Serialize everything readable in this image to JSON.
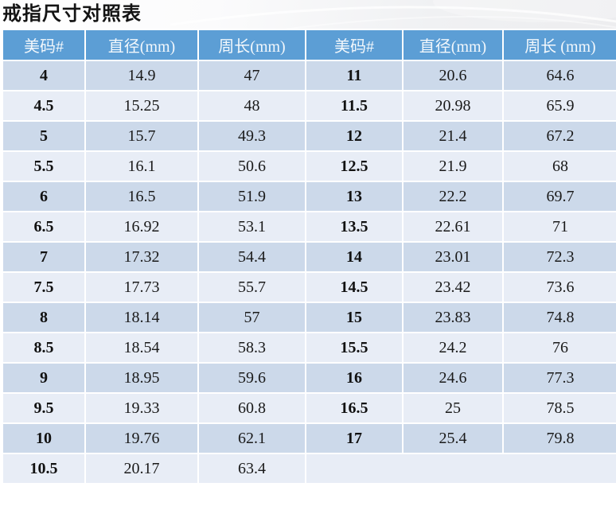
{
  "title": "戒指尺寸对照表",
  "colors": {
    "header_bg": "#5c9ed5",
    "row_dark": "#ccd9ea",
    "row_light": "#e8edf6",
    "header_text": "#f3f8fc",
    "cell_text": "#1a1a1a",
    "grid_border": "#ffffff",
    "title_text": "#141414"
  },
  "chart_data": {
    "type": "table",
    "title": "戒指尺寸对照表",
    "columns": [
      "美码#",
      "直径(mm)",
      "周长(mm)",
      "美码#",
      "直径(mm)",
      "周长 (mm)"
    ],
    "rows": [
      [
        "4",
        "14.9",
        "47",
        "11",
        "20.6",
        "64.6"
      ],
      [
        "4.5",
        "15.25",
        "48",
        "11.5",
        "20.98",
        "65.9"
      ],
      [
        "5",
        "15.7",
        "49.3",
        "12",
        "21.4",
        "67.2"
      ],
      [
        "5.5",
        "16.1",
        "50.6",
        "12.5",
        "21.9",
        "68"
      ],
      [
        "6",
        "16.5",
        "51.9",
        "13",
        "22.2",
        "69.7"
      ],
      [
        "6.5",
        "16.92",
        "53.1",
        "13.5",
        "22.61",
        "71"
      ],
      [
        "7",
        "17.32",
        "54.4",
        "14",
        "23.01",
        "72.3"
      ],
      [
        "7.5",
        "17.73",
        "55.7",
        "14.5",
        "23.42",
        "73.6"
      ],
      [
        "8",
        "18.14",
        "57",
        "15",
        "23.83",
        "74.8"
      ],
      [
        "8.5",
        "18.54",
        "58.3",
        "15.5",
        "24.2",
        "76"
      ],
      [
        "9",
        "18.95",
        "59.6",
        "16",
        "24.6",
        "77.3"
      ],
      [
        "9.5",
        "19.33",
        "60.8",
        "16.5",
        "25",
        "78.5"
      ],
      [
        "10",
        "19.76",
        "62.1",
        "17",
        "25.4",
        "79.8"
      ],
      [
        "10.5",
        "20.17",
        "63.4",
        "",
        "",
        ""
      ]
    ]
  }
}
